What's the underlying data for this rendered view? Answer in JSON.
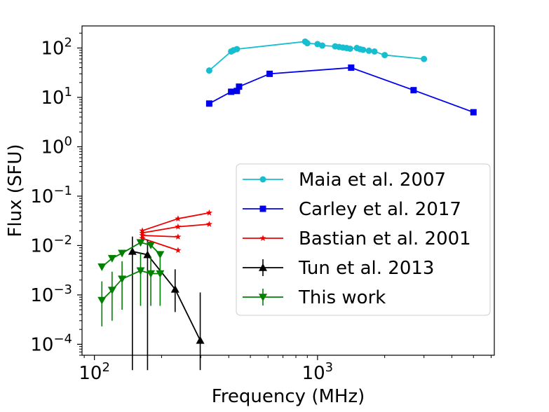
{
  "chart_data": {
    "type": "line",
    "scale": "log-log",
    "xlabel": "Frequency (MHz)",
    "ylabel": "Flux (SFU)",
    "xlim": [
      88,
      6200
    ],
    "ylim": [
      6e-05,
      280
    ],
    "x_ticks": [
      {
        "value": 100,
        "base": "10",
        "exp": "2"
      },
      {
        "value": 1000,
        "base": "10",
        "exp": "3"
      }
    ],
    "y_ticks": [
      {
        "value": 0.0001,
        "base": "10",
        "exp": "−4"
      },
      {
        "value": 0.001,
        "base": "10",
        "exp": "−3"
      },
      {
        "value": 0.01,
        "base": "10",
        "exp": "−2"
      },
      {
        "value": 0.1,
        "base": "10",
        "exp": "−1"
      },
      {
        "value": 1,
        "base": "10",
        "exp": "0"
      },
      {
        "value": 10,
        "base": "10",
        "exp": "1"
      },
      {
        "value": 100,
        "base": "10",
        "exp": "2"
      }
    ],
    "legend_position": "center-right",
    "series": [
      {
        "name": "Maia et al. 2007",
        "color": "#17becf",
        "marker": "circle",
        "lines": [
          {
            "x": [
              327,
              410,
              420,
              435,
              880,
              900,
              1000,
              1050,
              1200,
              1250,
              1300,
              1350,
              1400,
              1500,
              1550,
              1600,
              1700,
              1800,
              2000,
              3000
            ],
            "y": [
              35,
              85,
              90,
              95,
              135,
              125,
              120,
              112,
              108,
              105,
              102,
              100,
              97,
              100,
              95,
              92,
              88,
              85,
              72,
              60
            ]
          }
        ]
      },
      {
        "name": "Carley et al. 2017",
        "color": "#0000ee",
        "marker": "square",
        "lines": [
          {
            "x": [
              327,
              410,
              435,
              445,
              610,
              1415,
              2695,
              5000
            ],
            "y": [
              7.5,
              13,
              13.5,
              16.5,
              30,
              40,
              14,
              5
            ]
          }
        ]
      },
      {
        "name": "Bastian et al. 2001",
        "color": "#ee0000",
        "marker": "star",
        "lines": [
          {
            "x": [
              164,
              237,
              327
            ],
            "y": [
              0.02,
              0.035,
              0.046
            ]
          },
          {
            "x": [
              164,
              237,
              327
            ],
            "y": [
              0.018,
              0.024,
              0.027
            ]
          },
          {
            "x": [
              164,
              237
            ],
            "y": [
              0.016,
              0.015
            ]
          },
          {
            "x": [
              164,
              237
            ],
            "y": [
              0.014,
              0.008
            ]
          }
        ]
      },
      {
        "name": "Tun et al. 2013",
        "color": "#000000",
        "marker": "triangle-up",
        "errorbars": true,
        "lines": [
          {
            "x": [
              148,
              173,
              230,
              298
            ],
            "y": [
              0.0076,
              0.0065,
              0.0013,
              0.00012
            ],
            "err_low": [
              0.0076,
              0.0065,
              0.00085,
              0.00012
            ],
            "err_high": [
              0.0076,
              0.0065,
              0.002,
              0.001
            ]
          }
        ]
      },
      {
        "name": "This work",
        "color": "#008000",
        "marker": "triangle-down",
        "errorbars": true,
        "lines": [
          {
            "x": [
              108,
              120,
              133,
              161,
              179,
              197
            ],
            "y": [
              0.0037,
              0.0055,
              0.007,
              0.0115,
              0.0102,
              0.0066
            ]
          },
          {
            "x": [
              108,
              120,
              133,
              161,
              179,
              197
            ],
            "y": [
              0.00078,
              0.00125,
              0.0021,
              0.0031,
              0.0027,
              0.0027
            ],
            "err_low": [
              0.00055,
              0.00095,
              0.0016,
              0.0025,
              0.0021,
              0.0021
            ],
            "err_high": [
              0.0011,
              0.0017,
              0.0027,
              0.0039,
              0.0033,
              0.0033
            ]
          }
        ]
      }
    ]
  }
}
